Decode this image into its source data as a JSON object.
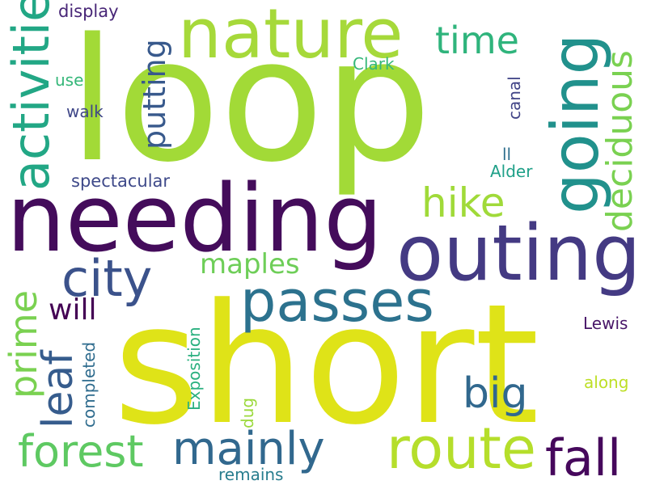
{
  "words": [
    {
      "text": "short",
      "color": "#dfe318"
    },
    {
      "text": "loop",
      "color": "#a2da37"
    },
    {
      "text": "needing",
      "color": "#440c5b"
    },
    {
      "text": "outing",
      "color": "#443a83"
    },
    {
      "text": "nature",
      "color": "#a6d93a"
    },
    {
      "text": "going",
      "color": "#21918c"
    },
    {
      "text": "passes",
      "color": "#2c728e"
    },
    {
      "text": "activities",
      "color": "#22a785"
    },
    {
      "text": "route",
      "color": "#b5de2b"
    },
    {
      "text": "city",
      "color": "#3b528b"
    },
    {
      "text": "deciduous",
      "color": "#7ad151"
    },
    {
      "text": "forest",
      "color": "#5ec962"
    },
    {
      "text": "mainly",
      "color": "#31688e"
    },
    {
      "text": "fall",
      "color": "#46085c"
    },
    {
      "text": "hike",
      "color": "#a0da39"
    },
    {
      "text": "time",
      "color": "#2fb47c"
    },
    {
      "text": "big",
      "color": "#31688e"
    },
    {
      "text": "leaf",
      "color": "#365c8d"
    },
    {
      "text": "prime",
      "color": "#7ad151"
    },
    {
      "text": "putting",
      "color": "#38598c"
    },
    {
      "text": "maples",
      "color": "#6ece58"
    },
    {
      "text": "will",
      "color": "#440154"
    },
    {
      "text": "spectacular",
      "color": "#3e4989"
    },
    {
      "text": "display",
      "color": "#482677"
    },
    {
      "text": "Clark",
      "color": "#35b779"
    },
    {
      "text": "use",
      "color": "#35b779"
    },
    {
      "text": "walk",
      "color": "#3f4788"
    },
    {
      "text": "canal",
      "color": "#414487"
    },
    {
      "text": "ll",
      "color": "#2e6e8e"
    },
    {
      "text": "Alder",
      "color": "#1fa088"
    },
    {
      "text": "Lewis",
      "color": "#481668"
    },
    {
      "text": "along",
      "color": "#bddf26"
    },
    {
      "text": "Exposition",
      "color": "#2ab07f"
    },
    {
      "text": "completed",
      "color": "#2f6c8e"
    },
    {
      "text": "dug",
      "color": "#9bd93c"
    },
    {
      "text": "remains",
      "color": "#287d8e"
    }
  ]
}
